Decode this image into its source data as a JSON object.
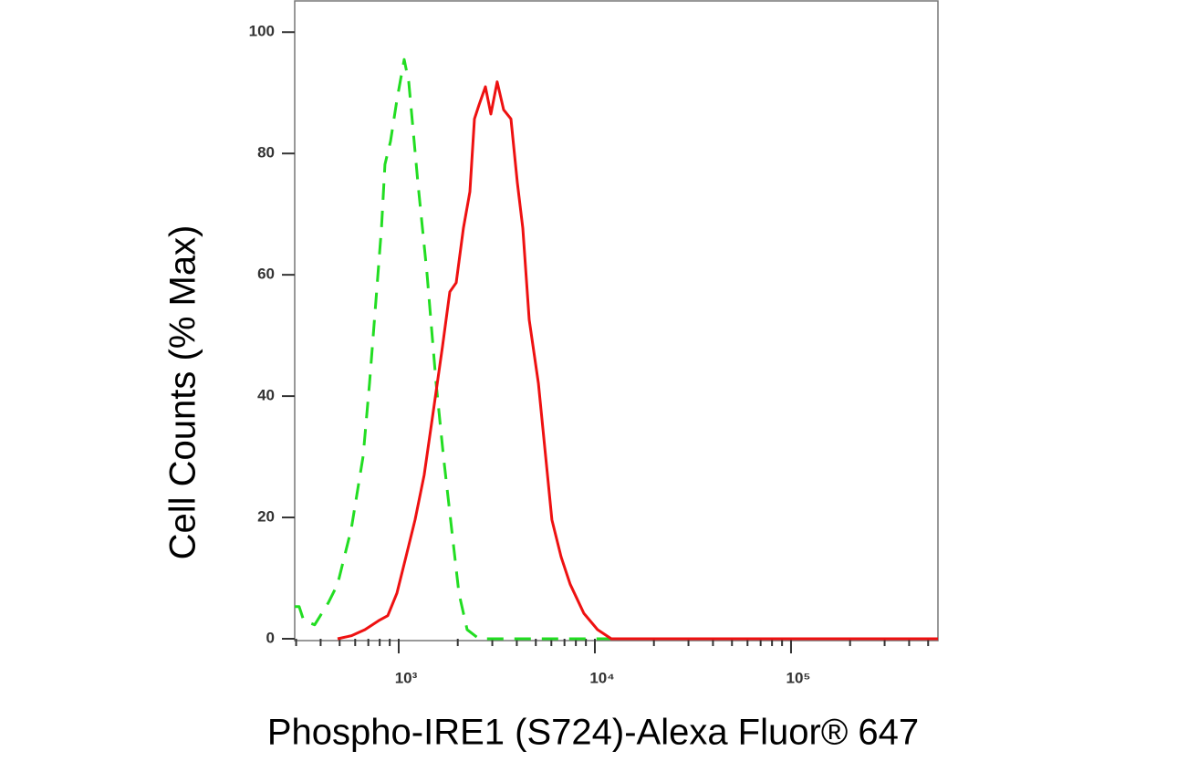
{
  "chart_data": {
    "type": "histogram-line",
    "x_label": "Phospho-IRE1 (S724)-Alexa Fluor® 647",
    "y_label": "Cell Counts (% Max)",
    "log_x": true,
    "xlim": [
      295,
      561000
    ],
    "xticks": [
      {
        "value": 1000,
        "label": "10³"
      },
      {
        "value": 10000,
        "label": "10⁴"
      },
      {
        "value": 100000,
        "label": "10⁵"
      }
    ],
    "ylim": [
      0,
      105
    ],
    "yticks": [
      0,
      20,
      40,
      60,
      80,
      100
    ],
    "series": [
      {
        "color": "#22dd22",
        "dashed": true,
        "x": [
          295,
          311,
          328,
          373,
          439,
          488,
          573,
          659,
          710,
          765,
          817,
          851,
          908,
          979,
          1066,
          1125,
          1253,
          1394,
          1552,
          1691,
          1862,
          2028,
          2234,
          2566,
          561000
        ],
        "values": [
          5.3,
          5.3,
          3.0,
          2.3,
          6.0,
          9.0,
          18.1,
          30.1,
          42.1,
          55.7,
          67.7,
          78.2,
          82.0,
          88.8,
          95.5,
          91.8,
          75.2,
          60.2,
          42.1,
          30.1,
          18.1,
          7.5,
          1.5,
          0,
          0
        ]
      },
      {
        "color": "#ee1111",
        "dashed": false,
        "x": [
          488,
          573,
          673,
          791,
          880,
          979,
          1089,
          1212,
          1349,
          1502,
          1671,
          1821,
          1963,
          2138,
          2305,
          2432,
          2566,
          2766,
          2951,
          3178,
          3428,
          3733,
          4025,
          4294,
          4624,
          5152,
          5610,
          6040,
          6730,
          7482,
          8790,
          10320,
          12130,
          561000
        ],
        "values": [
          0,
          0.5,
          1.5,
          3.0,
          3.8,
          7.5,
          13.5,
          19.6,
          27.0,
          37.6,
          48.1,
          57.2,
          58.7,
          67.7,
          73.7,
          85.7,
          88.0,
          91.0,
          86.5,
          91.8,
          87.2,
          85.7,
          75.2,
          67.7,
          52.6,
          42.1,
          30.1,
          19.6,
          13.5,
          9.0,
          4.2,
          1.5,
          0,
          0
        ]
      }
    ]
  }
}
